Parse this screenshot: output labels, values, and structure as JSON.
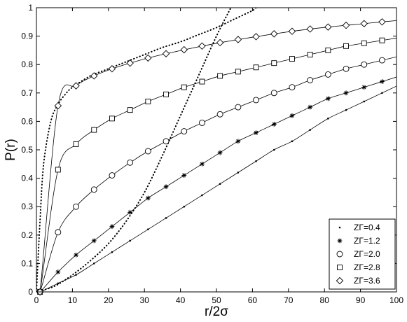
{
  "chart_data": {
    "type": "line",
    "xlabel": "r/2σ",
    "ylabel": "P(r)",
    "xlim": [
      0,
      100
    ],
    "ylim": [
      0,
      1
    ],
    "xticks": [
      0,
      10,
      20,
      30,
      40,
      50,
      60,
      70,
      80,
      90,
      100
    ],
    "yticks": [
      0,
      0.1,
      0.2,
      0.3,
      0.4,
      0.5,
      0.6,
      0.7,
      0.8,
      0.9,
      1
    ],
    "grid": false,
    "legend_position": "bottom-right",
    "series": [
      {
        "name": "ZΓ=0.4",
        "marker": "point",
        "x": [
          1,
          6,
          11,
          16,
          21,
          26,
          31,
          36,
          41,
          46,
          51,
          56,
          61,
          66,
          71,
          76,
          81,
          86,
          91,
          96
        ],
        "y": [
          0.0,
          0.03,
          0.06,
          0.1,
          0.14,
          0.18,
          0.22,
          0.26,
          0.3,
          0.34,
          0.38,
          0.42,
          0.46,
          0.5,
          0.53,
          0.57,
          0.61,
          0.64,
          0.67,
          0.7
        ]
      },
      {
        "name": "ZΓ=1.2",
        "marker": "star",
        "x": [
          1,
          6,
          11,
          16,
          21,
          26,
          31,
          36,
          41,
          46,
          51,
          56,
          61,
          66,
          71,
          76,
          81,
          86,
          91,
          96
        ],
        "y": [
          0.0,
          0.07,
          0.13,
          0.18,
          0.23,
          0.28,
          0.33,
          0.37,
          0.41,
          0.45,
          0.49,
          0.53,
          0.56,
          0.59,
          0.62,
          0.65,
          0.68,
          0.7,
          0.72,
          0.74
        ]
      },
      {
        "name": "ZΓ=2.0",
        "marker": "circle",
        "x": [
          1,
          6,
          11,
          16,
          21,
          26,
          31,
          36,
          41,
          46,
          51,
          56,
          61,
          66,
          71,
          76,
          81,
          86,
          91,
          96
        ],
        "y": [
          0.0,
          0.21,
          0.3,
          0.36,
          0.41,
          0.455,
          0.495,
          0.53,
          0.565,
          0.595,
          0.625,
          0.65,
          0.675,
          0.7,
          0.72,
          0.745,
          0.765,
          0.785,
          0.8,
          0.815
        ]
      },
      {
        "name": "ZΓ=2.8",
        "marker": "square",
        "x": [
          1,
          6,
          11,
          16,
          21,
          26,
          31,
          36,
          41,
          46,
          51,
          56,
          61,
          66,
          71,
          76,
          81,
          86,
          91,
          96
        ],
        "y": [
          0.0,
          0.43,
          0.52,
          0.57,
          0.61,
          0.64,
          0.67,
          0.695,
          0.72,
          0.74,
          0.76,
          0.775,
          0.79,
          0.805,
          0.82,
          0.835,
          0.85,
          0.865,
          0.875,
          0.885
        ]
      },
      {
        "name": "ZΓ=3.6",
        "marker": "diamond",
        "x": [
          1,
          6,
          11,
          16,
          21,
          26,
          31,
          36,
          41,
          46,
          51,
          56,
          61,
          66,
          71,
          76,
          81,
          86,
          91,
          96
        ],
        "y": [
          0.0,
          0.655,
          0.725,
          0.76,
          0.785,
          0.805,
          0.823,
          0.838,
          0.852,
          0.865,
          0.877,
          0.888,
          0.898,
          0.908,
          0.917,
          0.925,
          0.932,
          0.938,
          0.944,
          0.95
        ]
      }
    ],
    "dotted_curves": [
      {
        "x": [
          0,
          1,
          2,
          4,
          6,
          8,
          10,
          15,
          20,
          25,
          30,
          35,
          40,
          45,
          50,
          55,
          60,
          61
        ],
        "y": [
          0,
          0.25,
          0.45,
          0.6,
          0.66,
          0.695,
          0.72,
          0.76,
          0.785,
          0.81,
          0.835,
          0.86,
          0.88,
          0.905,
          0.93,
          0.96,
          0.99,
          1.0
        ]
      },
      {
        "x": [
          0,
          5,
          10,
          15,
          20,
          25,
          30,
          35,
          40,
          45,
          50,
          54
        ],
        "y": [
          0,
          0.02,
          0.06,
          0.11,
          0.17,
          0.25,
          0.35,
          0.48,
          0.62,
          0.76,
          0.9,
          1.0
        ]
      }
    ]
  }
}
